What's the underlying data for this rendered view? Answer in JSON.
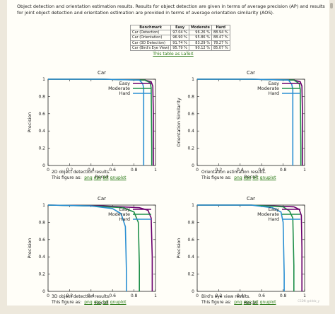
{
  "intro_text": "Object detection and orientation estimation results. Results for object detection are given in terms of average precision (AP) and results for joint object detection and orientation estimation are provided in terms of average orientation similarity (AOS).",
  "benchmark_table": {
    "headers": [
      "Benchmark",
      "Easy",
      "Moderate",
      "Hard"
    ],
    "rows": [
      [
        "Car (Detection)",
        "97.04 %",
        "96.26 %",
        "88.94 %"
      ],
      [
        "Car (Orientation)",
        "96.90 %",
        "95.86 %",
        "88.47 %"
      ],
      [
        "Car (3D Detection)",
        "91.74 %",
        "83.29 %",
        "78.27 %"
      ],
      [
        "Car (Bird's Eye View)",
        "95.79 %",
        "90.12 %",
        "85.07 %"
      ]
    ]
  },
  "latex_link": "This table as LaTeX",
  "figure_prefix": "This figure as:",
  "formats": [
    "png",
    "eps",
    "txt",
    "gnuplot"
  ],
  "watermark": "CSDN @dddz_y",
  "colors": {
    "easy": "#6a006e",
    "moderate": "#1f8f4a",
    "hard": "#2a8fd2"
  },
  "chart_data": [
    {
      "type": "line",
      "title": "Car",
      "xlabel": "Recall",
      "ylabel": "Precision",
      "xlim": [
        0,
        1
      ],
      "ylim": [
        0,
        1
      ],
      "xticks": [
        "0",
        "0.2",
        "0.4",
        "0.6",
        "0.8",
        "1"
      ],
      "yticks": [
        "0",
        "0.2",
        "0.4",
        "0.6",
        "0.8",
        "1"
      ],
      "legend": "top-right",
      "caption": "2D object detection results.",
      "series": [
        {
          "name": "Easy",
          "color": "#6a006e",
          "x": [
            0,
            0.5,
            0.9,
            0.96,
            0.975,
            0.98,
            0.98
          ],
          "y": [
            1,
            1,
            0.99,
            0.97,
            0.92,
            0.6,
            0
          ]
        },
        {
          "name": "Moderate",
          "color": "#1f8f4a",
          "x": [
            0,
            0.5,
            0.9,
            0.95,
            0.96,
            0.965,
            0.965
          ],
          "y": [
            1,
            1,
            0.99,
            0.96,
            0.9,
            0.2,
            0
          ]
        },
        {
          "name": "Hard",
          "color": "#2a8fd2",
          "x": [
            0,
            0.5,
            0.85,
            0.88,
            0.89,
            0.89
          ],
          "y": [
            1,
            1,
            0.99,
            0.95,
            0.9,
            0
          ]
        }
      ]
    },
    {
      "type": "line",
      "title": "Car",
      "xlabel": "Recall",
      "ylabel": "Orientation Similarity",
      "xlim": [
        0,
        1
      ],
      "ylim": [
        0,
        1
      ],
      "xticks": [
        "0",
        "0.2",
        "0.4",
        "0.6",
        "0.8",
        "1"
      ],
      "yticks": [
        "0",
        "0.2",
        "0.4",
        "0.6",
        "0.8",
        "1"
      ],
      "legend": "top-right",
      "caption": "Orientation estimation results.",
      "series": [
        {
          "name": "Easy",
          "color": "#6a006e",
          "x": [
            0,
            0.5,
            0.9,
            0.96,
            0.975,
            0.98,
            0.98
          ],
          "y": [
            1,
            1,
            0.99,
            0.97,
            0.92,
            0.6,
            0
          ]
        },
        {
          "name": "Moderate",
          "color": "#1f8f4a",
          "x": [
            0,
            0.5,
            0.9,
            0.95,
            0.96,
            0.965,
            0.965
          ],
          "y": [
            1,
            1,
            0.99,
            0.95,
            0.88,
            0.2,
            0
          ]
        },
        {
          "name": "Hard",
          "color": "#2a8fd2",
          "x": [
            0,
            0.5,
            0.85,
            0.88,
            0.89,
            0.89
          ],
          "y": [
            1,
            1,
            0.99,
            0.94,
            0.88,
            0
          ]
        }
      ]
    },
    {
      "type": "line",
      "title": "Car",
      "xlabel": "Recall",
      "ylabel": "Precision",
      "xlim": [
        0,
        1
      ],
      "ylim": [
        0,
        1
      ],
      "xticks": [
        "0",
        "0.2",
        "0.4",
        "0.6",
        "0.8",
        "1"
      ],
      "yticks": [
        "0",
        "0.2",
        "0.4",
        "0.6",
        "0.8",
        "1"
      ],
      "legend": "top-right",
      "caption": "3D object detection results.",
      "series": [
        {
          "name": "Easy",
          "color": "#6a006e",
          "x": [
            0,
            0.5,
            0.85,
            0.93,
            0.96,
            0.97,
            0.97
          ],
          "y": [
            1,
            0.99,
            0.97,
            0.94,
            0.85,
            0.4,
            0
          ]
        },
        {
          "name": "Moderate",
          "color": "#1f8f4a",
          "x": [
            0,
            0.4,
            0.7,
            0.8,
            0.84,
            0.85,
            0.85
          ],
          "y": [
            1,
            0.99,
            0.97,
            0.92,
            0.8,
            0.3,
            0
          ]
        },
        {
          "name": "Hard",
          "color": "#2a8fd2",
          "x": [
            0,
            0.4,
            0.6,
            0.68,
            0.72,
            0.73,
            0.73
          ],
          "y": [
            1,
            0.99,
            0.96,
            0.9,
            0.75,
            0.2,
            0
          ]
        }
      ]
    },
    {
      "type": "line",
      "title": "Car",
      "xlabel": "Recall",
      "ylabel": "Precision",
      "xlim": [
        0,
        1
      ],
      "ylim": [
        0,
        1
      ],
      "xticks": [
        "0",
        "0.2",
        "0.4",
        "0.6",
        "0.8",
        "1"
      ],
      "yticks": [
        "0",
        "0.2",
        "0.4",
        "0.6",
        "0.8",
        "1"
      ],
      "legend": "top-right",
      "caption": "Bird's eye view results.",
      "series": [
        {
          "name": "Easy",
          "color": "#6a006e",
          "x": [
            0,
            0.5,
            0.9,
            0.95,
            0.97,
            0.975,
            0.975
          ],
          "y": [
            1,
            1,
            0.98,
            0.95,
            0.88,
            0.5,
            0
          ]
        },
        {
          "name": "Moderate",
          "color": "#1f8f4a",
          "x": [
            0,
            0.5,
            0.8,
            0.86,
            0.89,
            0.9,
            0.9
          ],
          "y": [
            1,
            1,
            0.98,
            0.93,
            0.85,
            0.3,
            0
          ]
        },
        {
          "name": "Hard",
          "color": "#2a8fd2",
          "x": [
            0,
            0.5,
            0.7,
            0.78,
            0.8,
            0.81,
            0.81
          ],
          "y": [
            1,
            1,
            0.97,
            0.92,
            0.8,
            0.2,
            0
          ]
        }
      ]
    }
  ]
}
